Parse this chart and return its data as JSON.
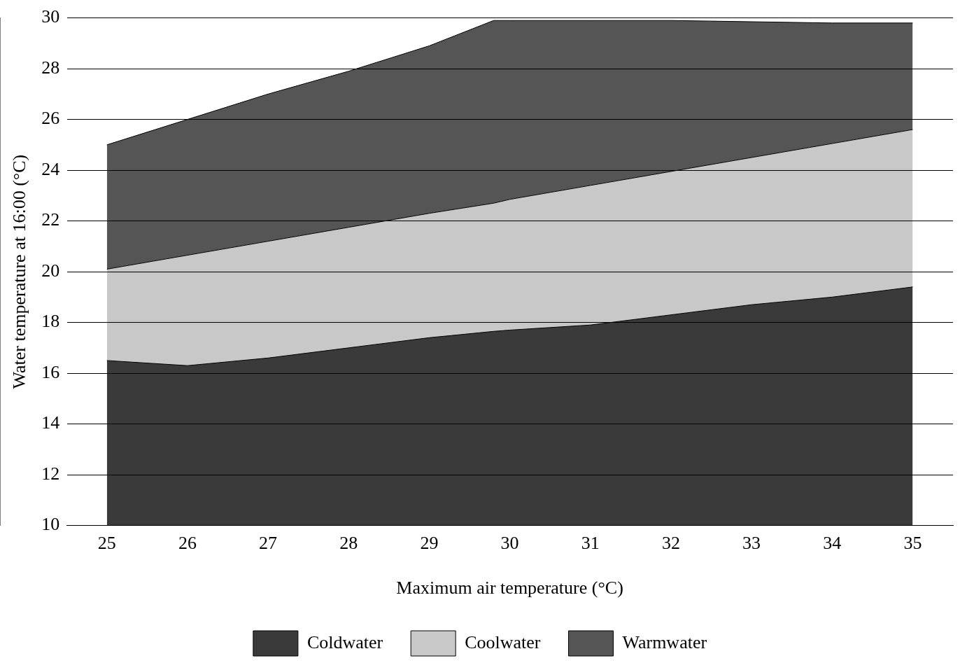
{
  "chart_data": {
    "type": "area",
    "xlabel": "Maximum air temperature (°C)",
    "ylabel": "Water temperature at 16:00 (°C)",
    "x": [
      25,
      26,
      27,
      28,
      29,
      29.8,
      30,
      31,
      32,
      33,
      34,
      35
    ],
    "series": [
      {
        "name": "Coldwater",
        "color": "#3a3a3a",
        "values": [
          16.5,
          16.3,
          16.6,
          17.0,
          17.4,
          17.65,
          17.7,
          17.9,
          18.3,
          18.7,
          19.0,
          19.4
        ]
      },
      {
        "name": "Coolwater",
        "color": "#c8c8c8",
        "values": [
          20.1,
          20.65,
          21.2,
          21.75,
          22.3,
          22.7,
          22.85,
          23.4,
          23.95,
          24.5,
          25.05,
          25.6
        ]
      },
      {
        "name": "Warmwater",
        "color": "#555555",
        "values": [
          25,
          26,
          27,
          27.9,
          28.9,
          29.9,
          29.9,
          29.9,
          29.9,
          29.85,
          29.8,
          29.8
        ]
      }
    ],
    "xlim": [
      24.5,
      35.5
    ],
    "xticks": [
      25,
      26,
      27,
      28,
      29,
      30,
      31,
      32,
      33,
      34,
      35
    ],
    "ylim": [
      10,
      30
    ],
    "yticks": [
      10,
      12,
      14,
      16,
      18,
      20,
      22,
      24,
      26,
      28,
      30
    ],
    "grid": "y",
    "legend": "bottom",
    "marker": "none"
  }
}
